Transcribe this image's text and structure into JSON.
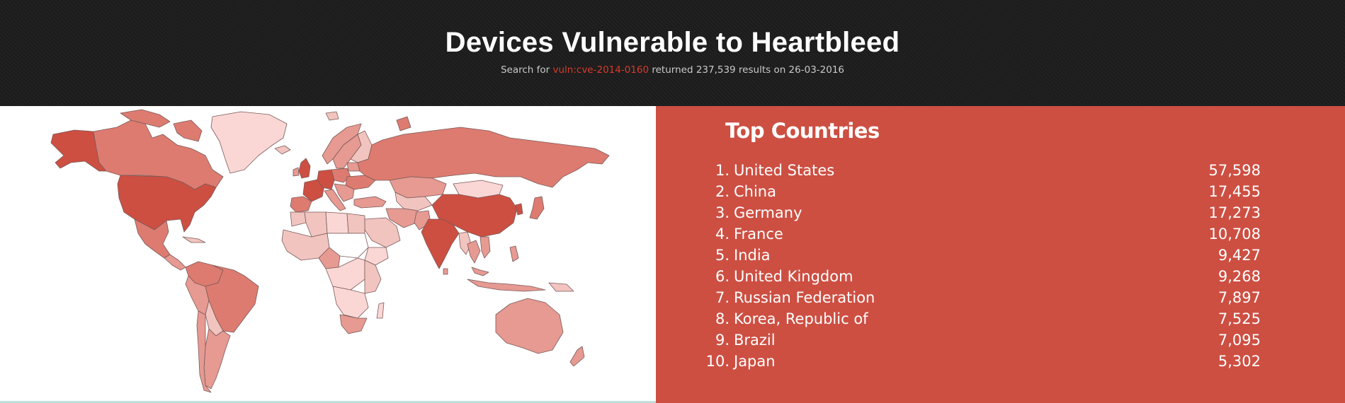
{
  "header": {
    "title": "Devices Vulnerable to Heartbleed",
    "subtitle_prefix": "Search for ",
    "query": "vuln:cve-2014-0160",
    "subtitle_suffix": " returned 237,539 results on 26-03-2016"
  },
  "map": {
    "colors": {
      "very_high": "#cd4f42",
      "high": "#dd7b70",
      "medium": "#e69a92",
      "low": "#f2c4c0",
      "very_low": "#fad7d5",
      "none": "#ffffff",
      "border": "#7a5a58"
    }
  },
  "panel": {
    "title": "Top Countries",
    "background": "#cd4f42",
    "countries": [
      {
        "rank": "1.",
        "name": "United States",
        "count": "57,598"
      },
      {
        "rank": "2.",
        "name": "China",
        "count": "17,455"
      },
      {
        "rank": "3.",
        "name": "Germany",
        "count": "17,273"
      },
      {
        "rank": "4.",
        "name": "France",
        "count": "10,708"
      },
      {
        "rank": "5.",
        "name": "India",
        "count": "9,427"
      },
      {
        "rank": "6.",
        "name": "United Kingdom",
        "count": "9,268"
      },
      {
        "rank": "7.",
        "name": "Russian Federation",
        "count": "7,897"
      },
      {
        "rank": "8.",
        "name": "Korea, Republic of",
        "count": "7,525"
      },
      {
        "rank": "9.",
        "name": "Brazil",
        "count": "7,095"
      },
      {
        "rank": "10.",
        "name": "Japan",
        "count": "5,302"
      }
    ]
  }
}
